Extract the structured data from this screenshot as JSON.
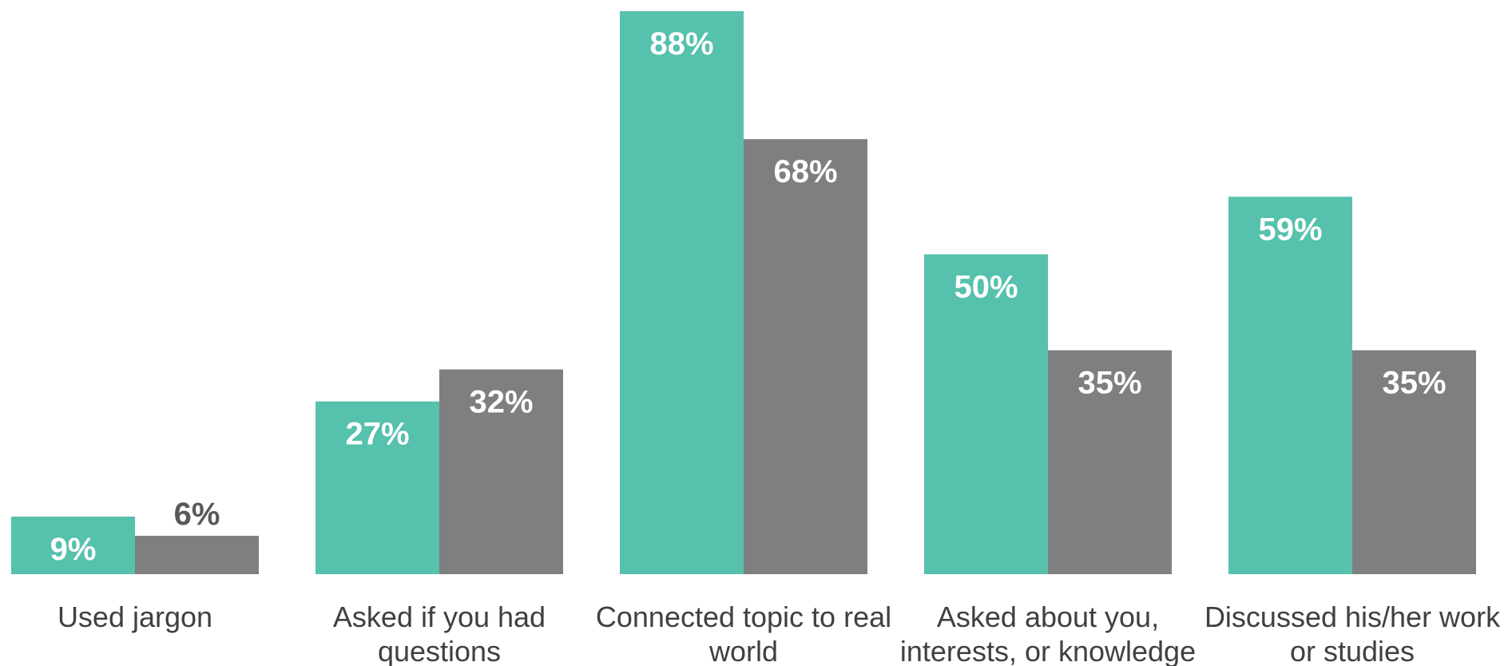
{
  "chart_data": {
    "type": "bar",
    "categories": [
      [
        "Used jargon"
      ],
      [
        "Asked if you had",
        "questions"
      ],
      [
        "Connected topic to real",
        "world"
      ],
      [
        "Asked about you,",
        "interests, or knowledge"
      ],
      [
        "Discussed his/her work",
        "or studies"
      ]
    ],
    "series": [
      {
        "values": [
          9,
          27,
          88,
          50,
          59
        ],
        "labels": [
          "9%",
          "27%",
          "88%",
          "50%",
          "59%"
        ],
        "color": "#56C1AC"
      },
      {
        "values": [
          6,
          32,
          68,
          35,
          35
        ],
        "labels": [
          "6%",
          "32%",
          "68%",
          "35%",
          "35%"
        ],
        "color": "#7F7F7F"
      }
    ],
    "ylim": [
      0,
      88
    ],
    "grid": false,
    "legend": "none",
    "label_colors": {
      "inside": "#FFFFFF",
      "outside": "#595959"
    }
  }
}
